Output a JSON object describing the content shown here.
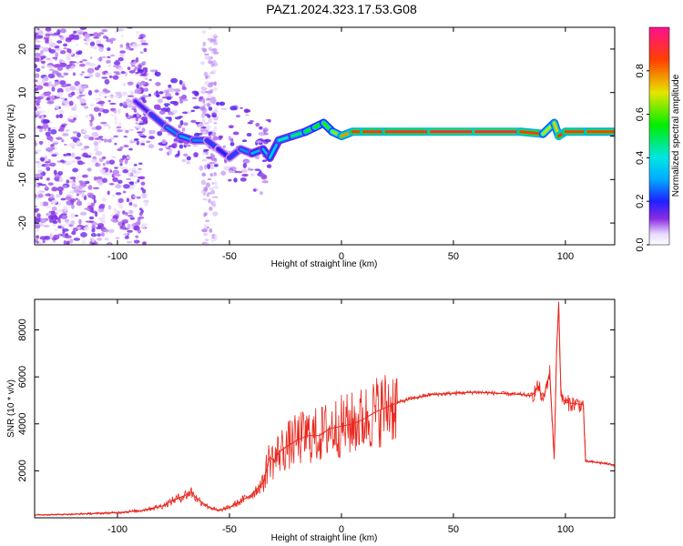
{
  "title": "PAZ1.2024.323.17.53.G08",
  "colors": {
    "snr_line": "#e8281e",
    "spectrum_ridge": "#ff2020",
    "scatter_purple": "#7a19e6"
  },
  "chart_data": [
    {
      "type": "heatmap",
      "xlabel": "Height of straight line (km)",
      "ylabel": "Frequency (Hz)",
      "xlim": [
        -137,
        122
      ],
      "ylim": [
        -25,
        25
      ],
      "xticks": [
        -100,
        -50,
        0,
        50,
        100
      ],
      "yticks": [
        -20,
        -10,
        0,
        10,
        20
      ],
      "grid": false,
      "colorbar": {
        "label": "Normalized spectral amplitude",
        "range": [
          0.0,
          1.0
        ],
        "ticks": [
          "0.0",
          "0.2",
          "0.4",
          "0.6",
          "0.8"
        ],
        "colormap": "rainbow (white-purple-blue-cyan-green-yellow-red-magenta)"
      },
      "ridge": {
        "x": [
          -92,
          -85,
          -78,
          -72,
          -66,
          -60,
          -55,
          -50,
          -45,
          -40,
          -35,
          -32,
          -28,
          -22,
          -16,
          -12,
          -8,
          -4,
          0,
          5,
          10,
          20,
          40,
          60,
          80,
          90,
          95,
          97,
          100,
          110,
          122
        ],
        "y": [
          8,
          5,
          2,
          0,
          -1,
          -1,
          -3,
          -5,
          -3,
          -4,
          -3,
          -5,
          -1,
          0,
          1,
          2,
          3,
          1,
          0,
          1,
          1,
          1,
          1,
          1,
          1,
          0.5,
          3,
          0,
          1,
          1,
          1
        ],
        "amplitude": [
          0.15,
          0.2,
          0.25,
          0.3,
          0.3,
          0.25,
          0.2,
          0.2,
          0.25,
          0.3,
          0.35,
          0.3,
          0.4,
          0.45,
          0.5,
          0.55,
          0.55,
          0.6,
          0.7,
          0.85,
          0.9,
          0.9,
          0.95,
          0.95,
          0.95,
          0.8,
          0.55,
          0.9,
          0.9,
          0.85,
          0.85
        ]
      }
    },
    {
      "type": "line",
      "xlabel": "Height of straight line (km)",
      "ylabel": "SNR (10 * v/v)",
      "xlim": [
        -137,
        122
      ],
      "ylim": [
        0,
        9300
      ],
      "xticks": [
        -100,
        -50,
        0,
        50,
        100
      ],
      "yticks": [
        2000,
        4000,
        6000,
        8000
      ],
      "grid": false,
      "series": [
        {
          "x": [
            -137,
            -120,
            -100,
            -90,
            -80,
            -75,
            -70,
            -67,
            -65,
            -60,
            -55,
            -50,
            -45,
            -40,
            -35,
            -32,
            -30,
            -28,
            -25,
            -20,
            -15,
            -10,
            -5,
            0,
            5,
            10,
            15,
            20,
            25,
            30,
            40,
            50,
            60,
            70,
            80,
            85,
            88,
            90,
            93,
            95,
            96,
            97,
            98,
            100,
            105,
            108,
            109,
            110,
            115,
            122
          ],
          "y": [
            120,
            150,
            220,
            300,
            500,
            750,
            950,
            1100,
            850,
            500,
            300,
            450,
            700,
            1000,
            1500,
            2600,
            2400,
            2800,
            3000,
            3300,
            3500,
            3500,
            3800,
            3900,
            4000,
            4200,
            4500,
            4700,
            4900,
            5050,
            5250,
            5300,
            5350,
            5300,
            5250,
            5200,
            5600,
            5000,
            6200,
            2500,
            7000,
            9200,
            5200,
            4900,
            4850,
            4800,
            2400,
            2400,
            2350,
            2250
          ]
        }
      ]
    }
  ]
}
